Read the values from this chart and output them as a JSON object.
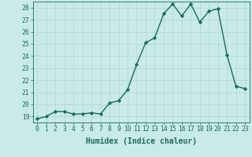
{
  "x": [
    0,
    1,
    2,
    3,
    4,
    5,
    6,
    7,
    8,
    9,
    10,
    11,
    12,
    13,
    14,
    15,
    16,
    17,
    18,
    19,
    20,
    21,
    22,
    23
  ],
  "y": [
    18.8,
    19.0,
    19.4,
    19.4,
    19.2,
    19.2,
    19.3,
    19.2,
    20.1,
    20.3,
    21.2,
    23.3,
    25.1,
    25.5,
    27.5,
    28.3,
    27.3,
    28.3,
    26.8,
    27.7,
    27.9,
    24.1,
    21.5,
    21.3
  ],
  "line_color": "#1a6b5a",
  "marker": "D",
  "markersize": 2.2,
  "linewidth": 1.0,
  "xlabel": "Humidex (Indice chaleur)",
  "ylabel": "",
  "xlim": [
    -0.5,
    23.5
  ],
  "ylim": [
    18.5,
    28.5
  ],
  "yticks": [
    19,
    20,
    21,
    22,
    23,
    24,
    25,
    26,
    27,
    28
  ],
  "xticks": [
    0,
    1,
    2,
    3,
    4,
    5,
    6,
    7,
    8,
    9,
    10,
    11,
    12,
    13,
    14,
    15,
    16,
    17,
    18,
    19,
    20,
    21,
    22,
    23
  ],
  "bg_color": "#c8eaea",
  "grid_color": "#b0d4d4",
  "axis_fontsize": 6.5,
  "tick_fontsize": 5.8,
  "xlabel_fontsize": 7.0
}
